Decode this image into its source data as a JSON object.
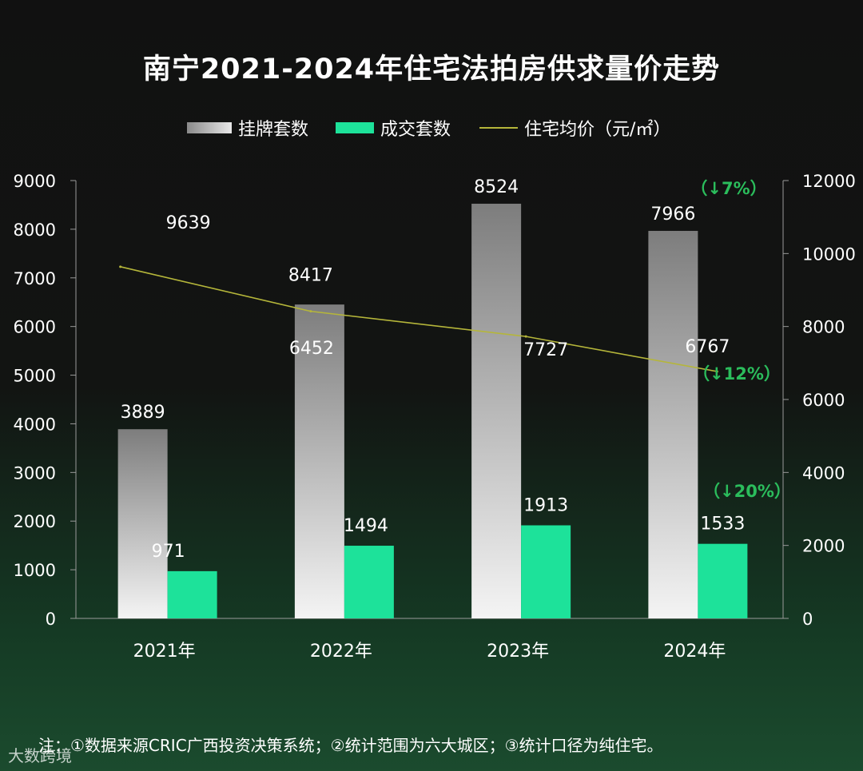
{
  "title": "南宁2021-2024年住宅法拍房供求量价走势",
  "legend": {
    "listed": "挂牌套数",
    "deals": "成交套数",
    "price": "住宅均价（元/㎡）"
  },
  "note": "注：①数据来源CRIC广西投资决策系统；②统计范围为六大城区；③统计口径为纯住宅。",
  "watermark": "大数跨境",
  "colors": {
    "deals": "#1de29a",
    "price_line": "#b5b63a",
    "change_text": "#2bbd5c"
  },
  "chart_data": {
    "type": "bar",
    "title": "南宁2021-2024年住宅法拍房供求量价走势",
    "categories": [
      "2021年",
      "2022年",
      "2023年",
      "2024年"
    ],
    "series": [
      {
        "name": "挂牌套数",
        "type": "bar",
        "axis": "left",
        "values": [
          3889,
          6452,
          8524,
          7966
        ],
        "labels": [
          "3889",
          "6452",
          "8524",
          "7966"
        ]
      },
      {
        "name": "成交套数",
        "type": "bar",
        "axis": "left",
        "values": [
          971,
          1494,
          1913,
          1533
        ],
        "labels": [
          "971",
          "1494",
          "1913",
          "1533"
        ]
      },
      {
        "name": "住宅均价（元/㎡）",
        "type": "line",
        "axis": "right",
        "values": [
          9639,
          8417,
          7727,
          6767
        ],
        "labels": [
          "9639",
          "8417",
          "7727",
          "6767"
        ]
      }
    ],
    "y_left": {
      "min": 0,
      "max": 9000,
      "step": 1000,
      "ticks": [
        "0",
        "1000",
        "2000",
        "3000",
        "4000",
        "5000",
        "6000",
        "7000",
        "8000",
        "9000"
      ]
    },
    "y_right": {
      "min": 0,
      "max": 12000,
      "step": 2000,
      "ticks": [
        "0",
        "2000",
        "4000",
        "6000",
        "8000",
        "10000",
        "12000"
      ]
    },
    "annotations": [
      {
        "series": "挂牌套数",
        "text": "（↓7%）"
      },
      {
        "series": "住宅均价（元/㎡）",
        "text": "（↓12%）"
      },
      {
        "series": "成交套数",
        "text": "（↓20%）"
      }
    ]
  }
}
